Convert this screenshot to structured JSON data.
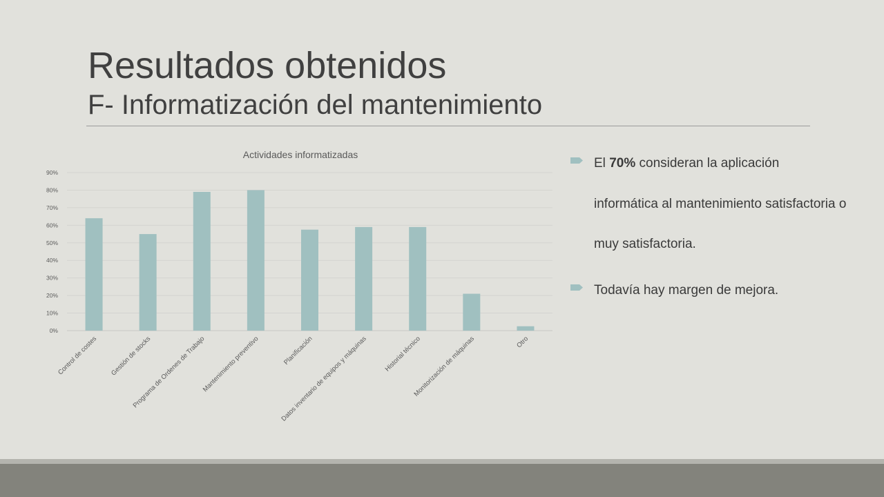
{
  "slide": {
    "title": "Resultados obtenidos",
    "subtitle": "F- Informatización del mantenimiento"
  },
  "bullets": [
    {
      "pre": "El ",
      "bold": "70%",
      "post": " consideran la aplicación informática al mantenimiento satisfactoria o muy satisfactoria."
    },
    {
      "pre": "Todavía hay margen de mejora.",
      "bold": "",
      "post": ""
    }
  ],
  "colors": {
    "bar": "#a0c0c0",
    "bullet_marker": "#a0c0c0",
    "text": "#404040"
  },
  "chart_data": {
    "type": "bar",
    "title": "Actividades informatizadas",
    "categories": [
      "Control de costes",
      "Gestión de stocks",
      "Programa de Ordenes de Trabajo",
      "Mantenimiento preventivo",
      "Planificación",
      "Datos inventario de equipos y máquinas",
      "Historial técnico",
      "Monitorización de máquinas",
      "Otro"
    ],
    "values": [
      0.64,
      0.55,
      0.79,
      0.8,
      0.575,
      0.59,
      0.59,
      0.21,
      0.025
    ],
    "ylim": [
      0,
      0.9
    ],
    "yticks": [
      "0%",
      "10%",
      "20%",
      "30%",
      "40%",
      "50%",
      "60%",
      "70%",
      "80%",
      "90%"
    ],
    "grid": true,
    "legend": "none"
  }
}
